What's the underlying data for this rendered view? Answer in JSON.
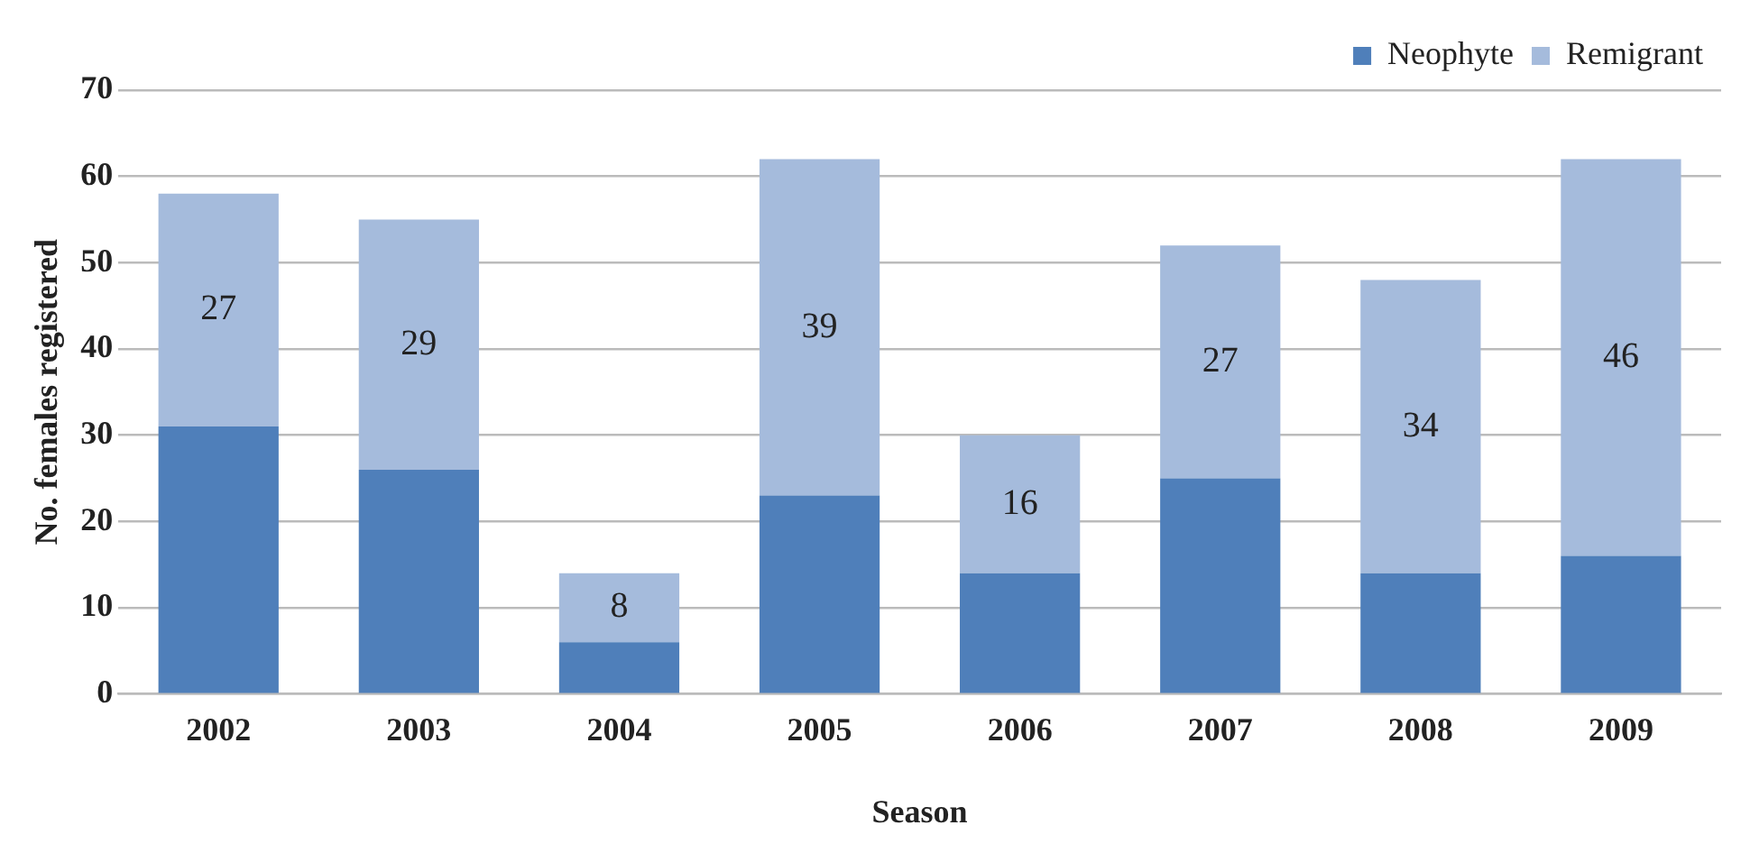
{
  "chart_data": {
    "type": "bar",
    "stacked": true,
    "xlabel": "Season",
    "ylabel": "No. females registered",
    "categories": [
      "2002",
      "2003",
      "2004",
      "2005",
      "2006",
      "2007",
      "2008",
      "2009"
    ],
    "series": [
      {
        "name": "Neophyte",
        "color": "#4f7fba",
        "values": [
          31,
          26,
          6,
          23,
          14,
          25,
          14,
          16
        ]
      },
      {
        "name": "Remigrant",
        "color": "#a5bbdc",
        "values": [
          27,
          29,
          8,
          39,
          16,
          27,
          34,
          46
        ],
        "value_labels": [
          "27",
          "29",
          "8",
          "39",
          "16",
          "27",
          "34",
          "46"
        ]
      }
    ],
    "ylim": [
      0,
      70
    ],
    "yticks": [
      0,
      10,
      20,
      30,
      40,
      50,
      60,
      70
    ],
    "grid": "y",
    "legend": "top right"
  }
}
